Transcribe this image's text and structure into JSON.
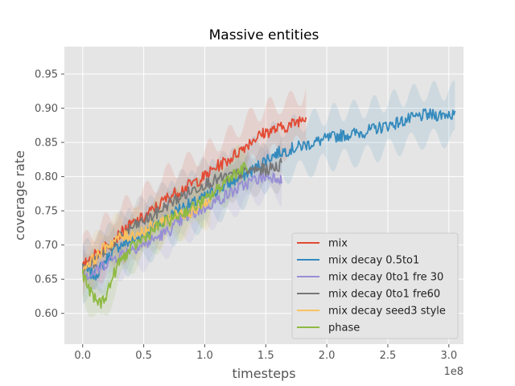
{
  "chart_data": {
    "type": "line",
    "title": "Massive entities",
    "xlabel": "timesteps",
    "ylabel": "coverage rate",
    "x_scale_label": "1e8",
    "xlim": [
      -0.15,
      3.12
    ],
    "ylim": [
      0.555,
      0.99
    ],
    "x_ticks": [
      0.0,
      0.5,
      1.0,
      1.5,
      2.0,
      2.5,
      3.0
    ],
    "x_tick_labels": [
      "0.0",
      "0.5",
      "1.0",
      "1.5",
      "2.0",
      "2.5",
      "3.0"
    ],
    "y_ticks": [
      0.6,
      0.65,
      0.7,
      0.75,
      0.8,
      0.85,
      0.9,
      0.95
    ],
    "y_tick_labels": [
      "0.60",
      "0.65",
      "0.70",
      "0.75",
      "0.80",
      "0.85",
      "0.90",
      "0.95"
    ],
    "grid": true,
    "legend_position": "lower-right",
    "series": [
      {
        "name": "mix decay 0.5to1",
        "color": "#348ABD",
        "band": 0.05,
        "points": [
          [
            0.0,
            0.665
          ],
          [
            0.05,
            0.66
          ],
          [
            0.1,
            0.655
          ],
          [
            0.2,
            0.68
          ],
          [
            0.3,
            0.7
          ],
          [
            0.4,
            0.705
          ],
          [
            0.5,
            0.715
          ],
          [
            0.6,
            0.73
          ],
          [
            0.7,
            0.74
          ],
          [
            0.8,
            0.755
          ],
          [
            0.9,
            0.76
          ],
          [
            1.0,
            0.77
          ],
          [
            1.1,
            0.78
          ],
          [
            1.2,
            0.79
          ],
          [
            1.3,
            0.8
          ],
          [
            1.4,
            0.81
          ],
          [
            1.5,
            0.825
          ],
          [
            1.6,
            0.835
          ],
          [
            1.7,
            0.84
          ],
          [
            1.8,
            0.845
          ],
          [
            1.9,
            0.85
          ],
          [
            2.0,
            0.855
          ],
          [
            2.1,
            0.86
          ],
          [
            2.2,
            0.862
          ],
          [
            2.3,
            0.865
          ],
          [
            2.4,
            0.87
          ],
          [
            2.5,
            0.875
          ],
          [
            2.6,
            0.88
          ],
          [
            2.7,
            0.885
          ],
          [
            2.8,
            0.89
          ],
          [
            2.9,
            0.89
          ],
          [
            3.0,
            0.892
          ],
          [
            3.05,
            0.89
          ]
        ]
      },
      {
        "name": "mix",
        "color": "#E24A33",
        "band": 0.05,
        "points": [
          [
            0.0,
            0.665
          ],
          [
            0.05,
            0.68
          ],
          [
            0.1,
            0.685
          ],
          [
            0.2,
            0.7
          ],
          [
            0.3,
            0.715
          ],
          [
            0.4,
            0.73
          ],
          [
            0.5,
            0.74
          ],
          [
            0.6,
            0.755
          ],
          [
            0.7,
            0.77
          ],
          [
            0.8,
            0.78
          ],
          [
            0.9,
            0.79
          ],
          [
            1.0,
            0.8
          ],
          [
            1.1,
            0.815
          ],
          [
            1.2,
            0.825
          ],
          [
            1.3,
            0.84
          ],
          [
            1.4,
            0.855
          ],
          [
            1.5,
            0.865
          ],
          [
            1.6,
            0.87
          ],
          [
            1.7,
            0.875
          ],
          [
            1.8,
            0.885
          ],
          [
            1.83,
            0.89
          ]
        ]
      },
      {
        "name": "mix decay 0to1 fre 30",
        "color": "#988ED5",
        "band": 0.04,
        "points": [
          [
            0.0,
            0.665
          ],
          [
            0.05,
            0.655
          ],
          [
            0.1,
            0.66
          ],
          [
            0.2,
            0.675
          ],
          [
            0.3,
            0.685
          ],
          [
            0.4,
            0.695
          ],
          [
            0.5,
            0.7
          ],
          [
            0.6,
            0.71
          ],
          [
            0.7,
            0.72
          ],
          [
            0.8,
            0.735
          ],
          [
            0.9,
            0.745
          ],
          [
            1.0,
            0.755
          ],
          [
            1.1,
            0.765
          ],
          [
            1.2,
            0.775
          ],
          [
            1.3,
            0.785
          ],
          [
            1.4,
            0.795
          ],
          [
            1.5,
            0.8
          ],
          [
            1.6,
            0.8
          ],
          [
            1.63,
            0.795
          ]
        ]
      },
      {
        "name": "mix decay 0to1 fre60",
        "color": "#777777",
        "band": 0.04,
        "points": [
          [
            0.0,
            0.665
          ],
          [
            0.05,
            0.67
          ],
          [
            0.1,
            0.675
          ],
          [
            0.2,
            0.695
          ],
          [
            0.3,
            0.71
          ],
          [
            0.4,
            0.725
          ],
          [
            0.5,
            0.735
          ],
          [
            0.6,
            0.745
          ],
          [
            0.7,
            0.76
          ],
          [
            0.8,
            0.77
          ],
          [
            0.9,
            0.78
          ],
          [
            1.0,
            0.79
          ],
          [
            1.1,
            0.795
          ],
          [
            1.2,
            0.8
          ],
          [
            1.3,
            0.805
          ],
          [
            1.4,
            0.81
          ],
          [
            1.5,
            0.81
          ],
          [
            1.6,
            0.815
          ],
          [
            1.63,
            0.82
          ]
        ]
      },
      {
        "name": "mix decay seed3 style",
        "color": "#FBC15E",
        "band": 0.04,
        "points": [
          [
            0.0,
            0.665
          ],
          [
            0.05,
            0.675
          ],
          [
            0.1,
            0.68
          ],
          [
            0.2,
            0.7
          ],
          [
            0.3,
            0.71
          ],
          [
            0.4,
            0.715
          ],
          [
            0.5,
            0.72
          ],
          [
            0.6,
            0.73
          ],
          [
            0.7,
            0.74
          ],
          [
            0.8,
            0.745
          ],
          [
            0.9,
            0.75
          ],
          [
            1.0,
            0.76
          ],
          [
            1.05,
            0.765
          ]
        ]
      },
      {
        "name": "phase",
        "color": "#8EBA42",
        "band": 0.04,
        "points": [
          [
            0.0,
            0.66
          ],
          [
            0.05,
            0.635
          ],
          [
            0.1,
            0.62
          ],
          [
            0.15,
            0.615
          ],
          [
            0.2,
            0.63
          ],
          [
            0.25,
            0.655
          ],
          [
            0.3,
            0.675
          ],
          [
            0.4,
            0.695
          ],
          [
            0.5,
            0.71
          ],
          [
            0.6,
            0.725
          ],
          [
            0.7,
            0.735
          ],
          [
            0.8,
            0.745
          ],
          [
            0.9,
            0.755
          ],
          [
            1.0,
            0.765
          ],
          [
            1.1,
            0.78
          ],
          [
            1.2,
            0.8
          ],
          [
            1.3,
            0.81
          ],
          [
            1.35,
            0.815
          ]
        ]
      }
    ],
    "legend_order": [
      "mix",
      "mix decay 0.5to1",
      "mix decay 0to1 fre 30",
      "mix decay 0to1 fre60",
      "mix decay seed3 style",
      "phase"
    ]
  }
}
